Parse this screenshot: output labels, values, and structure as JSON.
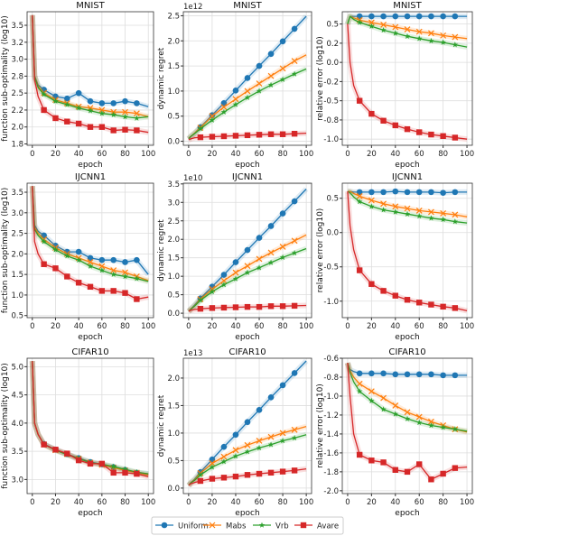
{
  "legend": {
    "placement": "bottom-center",
    "entries": [
      "Uniform",
      "Mabs",
      "Vrb",
      "Avare"
    ]
  },
  "colors": {
    "Uniform": "#1f77b4",
    "Mabs": "#ff7f0e",
    "Vrb": "#2ca02c",
    "Avare": "#d62728"
  },
  "markers": {
    "Uniform": "circle",
    "Mabs": "x",
    "Vrb": "star",
    "Avare": "square"
  },
  "chart_data": [
    {
      "type": "line",
      "title": "MNIST",
      "xlabel": "epoch",
      "ylabel": "function sub-optimality (log10)",
      "offset": "",
      "xlim": [
        0,
        100
      ],
      "ylim": [
        1.73,
        3.7
      ],
      "grid": true,
      "xticks": [
        0,
        20,
        40,
        60,
        80,
        100
      ],
      "yticks": [
        1.75,
        2.0,
        2.25,
        2.5,
        2.75,
        3.0,
        3.25,
        3.5
      ],
      "yticklabels": [
        "1.8",
        "2.0",
        "2.2",
        "2.5",
        "2.8",
        "3.0",
        "3.2",
        "3.5"
      ],
      "x": [
        0,
        2,
        5,
        10,
        20,
        30,
        40,
        50,
        60,
        70,
        80,
        90,
        100
      ],
      "series": [
        {
          "name": "Uniform",
          "values": [
            3.65,
            2.75,
            2.62,
            2.55,
            2.45,
            2.42,
            2.5,
            2.38,
            2.35,
            2.35,
            2.38,
            2.35,
            2.3
          ]
        },
        {
          "name": "Mabs",
          "values": [
            3.65,
            2.75,
            2.6,
            2.5,
            2.4,
            2.35,
            2.3,
            2.28,
            2.25,
            2.22,
            2.22,
            2.2,
            2.15
          ]
        },
        {
          "name": "Vrb",
          "values": [
            3.65,
            2.75,
            2.58,
            2.48,
            2.38,
            2.33,
            2.28,
            2.24,
            2.2,
            2.18,
            2.15,
            2.13,
            2.15
          ]
        },
        {
          "name": "Avare",
          "values": [
            3.65,
            2.7,
            2.45,
            2.25,
            2.13,
            2.08,
            2.05,
            2.0,
            2.0,
            1.95,
            1.96,
            1.95,
            1.92
          ]
        }
      ]
    },
    {
      "type": "line",
      "title": "MNIST",
      "xlabel": "epoch",
      "ylabel": "dynamic regret",
      "offset": "1e12",
      "xlim": [
        0,
        100
      ],
      "ylim": [
        -0.08,
        2.58
      ],
      "grid": true,
      "xticks": [
        0,
        20,
        40,
        60,
        80,
        100
      ],
      "yticks": [
        0,
        0.5,
        1.0,
        1.5,
        2.0,
        2.5
      ],
      "yticklabels": [
        "0.0",
        "0.5",
        "1.0",
        "1.5",
        "2.0",
        "2.5"
      ],
      "x": [
        0,
        2,
        5,
        10,
        20,
        30,
        40,
        50,
        60,
        70,
        80,
        90,
        100
      ],
      "series": [
        {
          "name": "Uniform",
          "values": [
            0.05,
            0.1,
            0.16,
            0.28,
            0.52,
            0.76,
            1.01,
            1.26,
            1.5,
            1.74,
            1.99,
            2.24,
            2.49
          ]
        },
        {
          "name": "Mabs",
          "values": [
            0.05,
            0.1,
            0.16,
            0.27,
            0.5,
            0.68,
            0.84,
            1.0,
            1.15,
            1.3,
            1.45,
            1.6,
            1.72
          ]
        },
        {
          "name": "Vrb",
          "values": [
            0.05,
            0.1,
            0.15,
            0.25,
            0.42,
            0.58,
            0.73,
            0.87,
            1.0,
            1.12,
            1.23,
            1.34,
            1.44
          ]
        },
        {
          "name": "Avare",
          "values": [
            0.03,
            0.05,
            0.07,
            0.08,
            0.09,
            0.1,
            0.11,
            0.12,
            0.13,
            0.14,
            0.14,
            0.15,
            0.16
          ]
        }
      ]
    },
    {
      "type": "line",
      "title": "MNIST",
      "xlabel": "epoch",
      "ylabel": "relative error (log10)",
      "offset": "",
      "xlim": [
        0,
        100
      ],
      "ylim": [
        -1.08,
        0.66
      ],
      "grid": true,
      "xticks": [
        0,
        20,
        40,
        60,
        80,
        100
      ],
      "yticks": [
        0.5,
        0.25,
        0,
        -0.25,
        -0.5,
        -0.75,
        -1.0
      ],
      "yticklabels": [
        "0.5",
        "0.2",
        "0.0",
        "-0.2",
        "-0.5",
        "-0.8",
        "-1.0"
      ],
      "x": [
        0,
        2,
        5,
        10,
        20,
        30,
        40,
        50,
        60,
        70,
        80,
        90,
        100
      ],
      "series": [
        {
          "name": "Uniform",
          "values": [
            0.5,
            0.6,
            0.6,
            0.6,
            0.6,
            0.6,
            0.6,
            0.6,
            0.6,
            0.6,
            0.6,
            0.6,
            0.6
          ]
        },
        {
          "name": "Mabs",
          "values": [
            0.5,
            0.6,
            0.58,
            0.55,
            0.52,
            0.49,
            0.46,
            0.43,
            0.4,
            0.38,
            0.35,
            0.33,
            0.31
          ]
        },
        {
          "name": "Vrb",
          "values": [
            0.5,
            0.6,
            0.56,
            0.52,
            0.47,
            0.42,
            0.38,
            0.34,
            0.31,
            0.28,
            0.26,
            0.23,
            0.2
          ]
        },
        {
          "name": "Avare",
          "values": [
            0.5,
            0.0,
            -0.3,
            -0.5,
            -0.67,
            -0.76,
            -0.82,
            -0.87,
            -0.91,
            -0.94,
            -0.96,
            -0.98,
            -1.0
          ]
        }
      ]
    },
    {
      "type": "line",
      "title": "IJCNN1",
      "xlabel": "epoch",
      "ylabel": "function sub-optimality (log10)",
      "offset": "",
      "xlim": [
        0,
        100
      ],
      "ylim": [
        0.45,
        3.72
      ],
      "grid": true,
      "xticks": [
        0,
        20,
        40,
        60,
        80,
        100
      ],
      "yticks": [
        0.5,
        1.0,
        1.5,
        2.0,
        2.5,
        3.0,
        3.5
      ],
      "yticklabels": [
        "0.5",
        "1.0",
        "1.5",
        "2.0",
        "2.5",
        "3.0",
        "3.5"
      ],
      "x": [
        0,
        2,
        5,
        10,
        20,
        30,
        40,
        50,
        60,
        70,
        80,
        90,
        100
      ],
      "series": [
        {
          "name": "Uniform",
          "values": [
            3.65,
            2.7,
            2.55,
            2.45,
            2.2,
            2.05,
            2.05,
            1.9,
            1.85,
            1.85,
            1.8,
            1.85,
            1.5
          ]
        },
        {
          "name": "Mabs",
          "values": [
            3.65,
            2.65,
            2.5,
            2.35,
            2.15,
            2.0,
            1.9,
            1.8,
            1.7,
            1.6,
            1.55,
            1.45,
            1.35
          ]
        },
        {
          "name": "Vrb",
          "values": [
            3.65,
            2.6,
            2.45,
            2.3,
            2.1,
            1.95,
            1.85,
            1.7,
            1.6,
            1.5,
            1.45,
            1.4,
            1.33
          ]
        },
        {
          "name": "Avare",
          "values": [
            3.65,
            2.3,
            2.0,
            1.75,
            1.65,
            1.45,
            1.3,
            1.2,
            1.1,
            1.1,
            1.05,
            0.9,
            0.95
          ]
        }
      ]
    },
    {
      "type": "line",
      "title": "IJCNN1",
      "xlabel": "epoch",
      "ylabel": "dynamic regret",
      "offset": "1e10",
      "xlim": [
        0,
        100
      ],
      "ylim": [
        -0.12,
        3.52
      ],
      "grid": true,
      "xticks": [
        0,
        20,
        40,
        60,
        80,
        100
      ],
      "yticks": [
        0,
        0.5,
        1.0,
        1.5,
        2.0,
        2.5,
        3.0,
        3.5
      ],
      "yticklabels": [
        "0.0",
        "0.5",
        "1.0",
        "1.5",
        "2.0",
        "2.5",
        "3.0",
        "3.5"
      ],
      "x": [
        0,
        2,
        5,
        10,
        20,
        30,
        40,
        50,
        60,
        70,
        80,
        90,
        100
      ],
      "series": [
        {
          "name": "Uniform",
          "values": [
            0.05,
            0.12,
            0.22,
            0.4,
            0.72,
            1.04,
            1.38,
            1.71,
            2.04,
            2.36,
            2.7,
            3.03,
            3.36
          ]
        },
        {
          "name": "Mabs",
          "values": [
            0.05,
            0.12,
            0.2,
            0.38,
            0.65,
            0.88,
            1.1,
            1.28,
            1.47,
            1.64,
            1.8,
            1.96,
            2.12
          ]
        },
        {
          "name": "Vrb",
          "values": [
            0.05,
            0.11,
            0.19,
            0.35,
            0.58,
            0.77,
            0.93,
            1.1,
            1.23,
            1.37,
            1.51,
            1.63,
            1.75
          ]
        },
        {
          "name": "Avare",
          "values": [
            0.05,
            0.08,
            0.1,
            0.12,
            0.14,
            0.15,
            0.16,
            0.17,
            0.17,
            0.19,
            0.19,
            0.2,
            0.21
          ]
        }
      ]
    },
    {
      "type": "line",
      "title": "IJCNN1",
      "xlabel": "epoch",
      "ylabel": "relative error (log10)",
      "offset": "",
      "xlim": [
        0,
        100
      ],
      "ylim": [
        -1.24,
        0.72
      ],
      "grid": true,
      "xticks": [
        0,
        20,
        40,
        60,
        80,
        100
      ],
      "yticks": [
        0.5,
        0,
        -0.5,
        -1.0
      ],
      "yticklabels": [
        "0.5",
        "0.0",
        "-0.5",
        "-1.0"
      ],
      "x": [
        0,
        2,
        5,
        10,
        20,
        30,
        40,
        50,
        60,
        70,
        80,
        90,
        100
      ],
      "series": [
        {
          "name": "Uniform",
          "values": [
            0.6,
            0.6,
            0.59,
            0.59,
            0.59,
            0.59,
            0.6,
            0.59,
            0.59,
            0.59,
            0.58,
            0.59,
            0.59
          ]
        },
        {
          "name": "Mabs",
          "values": [
            0.6,
            0.6,
            0.57,
            0.53,
            0.47,
            0.42,
            0.38,
            0.35,
            0.32,
            0.3,
            0.28,
            0.26,
            0.23
          ]
        },
        {
          "name": "Vrb",
          "values": [
            0.6,
            0.58,
            0.52,
            0.45,
            0.38,
            0.33,
            0.3,
            0.27,
            0.24,
            0.21,
            0.19,
            0.16,
            0.14
          ]
        },
        {
          "name": "Avare",
          "values": [
            0.6,
            0.1,
            -0.25,
            -0.55,
            -0.75,
            -0.85,
            -0.92,
            -0.98,
            -1.02,
            -1.05,
            -1.08,
            -1.1,
            -1.14
          ]
        }
      ]
    },
    {
      "type": "line",
      "title": "CIFAR10",
      "xlabel": "epoch",
      "ylabel": "function sub-optimality (log10)",
      "offset": "",
      "xlim": [
        0,
        100
      ],
      "ylim": [
        2.75,
        5.15
      ],
      "grid": true,
      "xticks": [
        0,
        20,
        40,
        60,
        80,
        100
      ],
      "yticks": [
        3.0,
        3.5,
        4.0,
        4.5,
        5.0
      ],
      "yticklabels": [
        "3.0",
        "3.5",
        "4.0",
        "4.5",
        "5.0"
      ],
      "x": [
        0,
        2,
        5,
        10,
        20,
        30,
        40,
        50,
        60,
        70,
        80,
        90,
        100
      ],
      "series": [
        {
          "name": "Uniform",
          "values": [
            5.1,
            4.0,
            3.8,
            3.63,
            3.53,
            3.45,
            3.38,
            3.31,
            3.27,
            3.22,
            3.17,
            3.12,
            3.1
          ]
        },
        {
          "name": "Mabs",
          "values": [
            5.1,
            4.0,
            3.8,
            3.62,
            3.52,
            3.45,
            3.37,
            3.3,
            3.26,
            3.21,
            3.16,
            3.12,
            3.08
          ]
        },
        {
          "name": "Vrb",
          "values": [
            5.1,
            4.0,
            3.8,
            3.62,
            3.52,
            3.44,
            3.37,
            3.3,
            3.27,
            3.23,
            3.18,
            3.13,
            3.1
          ]
        },
        {
          "name": "Avare",
          "values": [
            5.1,
            4.0,
            3.8,
            3.62,
            3.53,
            3.46,
            3.34,
            3.28,
            3.28,
            3.12,
            3.12,
            3.1,
            3.05
          ]
        }
      ]
    },
    {
      "type": "line",
      "title": "CIFAR10",
      "xlabel": "epoch",
      "ylabel": "dynamic regret",
      "offset": "1e13",
      "xlim": [
        0,
        100
      ],
      "ylim": [
        -0.1,
        2.36
      ],
      "grid": true,
      "xticks": [
        0,
        20,
        40,
        60,
        80,
        100
      ],
      "yticks": [
        0,
        0.5,
        1.0,
        1.5,
        2.0
      ],
      "yticklabels": [
        "0.0",
        "0.5",
        "1.0",
        "1.5",
        "2.0"
      ],
      "x": [
        0,
        2,
        5,
        10,
        20,
        30,
        40,
        50,
        60,
        70,
        80,
        90,
        100
      ],
      "series": [
        {
          "name": "Uniform",
          "values": [
            0.05,
            0.1,
            0.16,
            0.29,
            0.52,
            0.75,
            0.97,
            1.2,
            1.42,
            1.65,
            1.87,
            2.09,
            2.31
          ]
        },
        {
          "name": "Mabs",
          "values": [
            0.05,
            0.1,
            0.15,
            0.27,
            0.45,
            0.57,
            0.69,
            0.78,
            0.86,
            0.93,
            1.0,
            1.06,
            1.12
          ]
        },
        {
          "name": "Vrb",
          "values": [
            0.05,
            0.1,
            0.14,
            0.24,
            0.38,
            0.48,
            0.58,
            0.66,
            0.73,
            0.79,
            0.86,
            0.91,
            0.97
          ]
        },
        {
          "name": "Avare",
          "values": [
            0.05,
            0.08,
            0.1,
            0.13,
            0.17,
            0.19,
            0.21,
            0.24,
            0.26,
            0.28,
            0.3,
            0.32,
            0.35
          ]
        }
      ]
    },
    {
      "type": "line",
      "title": "CIFAR10",
      "xlabel": "epoch",
      "ylabel": "relative error (log10)",
      "offset": "",
      "xlim": [
        0,
        100
      ],
      "ylim": [
        -2.03,
        -0.6
      ],
      "grid": true,
      "xticks": [
        0,
        20,
        40,
        60,
        80,
        100
      ],
      "yticks": [
        -0.6,
        -0.8,
        -1.0,
        -1.2,
        -1.4,
        -1.6,
        -1.8,
        -2.0
      ],
      "yticklabels": [
        "-0.6",
        "-0.8",
        "-1.0",
        "-1.2",
        "-1.4",
        "-1.6",
        "-1.8",
        "-2.0"
      ],
      "x": [
        0,
        2,
        5,
        10,
        20,
        30,
        40,
        50,
        60,
        70,
        80,
        90,
        100
      ],
      "series": [
        {
          "name": "Uniform",
          "values": [
            -0.65,
            -0.72,
            -0.74,
            -0.76,
            -0.76,
            -0.76,
            -0.77,
            -0.77,
            -0.77,
            -0.77,
            -0.78,
            -0.78,
            -0.78
          ]
        },
        {
          "name": "Mabs",
          "values": [
            -0.65,
            -0.73,
            -0.8,
            -0.87,
            -0.95,
            -1.02,
            -1.1,
            -1.17,
            -1.22,
            -1.27,
            -1.31,
            -1.35,
            -1.38
          ]
        },
        {
          "name": "Vrb",
          "values": [
            -0.65,
            -0.75,
            -0.85,
            -0.95,
            -1.05,
            -1.14,
            -1.19,
            -1.24,
            -1.28,
            -1.31,
            -1.33,
            -1.35,
            -1.37
          ]
        },
        {
          "name": "Avare",
          "values": [
            -0.65,
            -1.0,
            -1.4,
            -1.62,
            -1.68,
            -1.7,
            -1.78,
            -1.8,
            -1.72,
            -1.88,
            -1.82,
            -1.76,
            -1.75
          ]
        }
      ]
    }
  ]
}
